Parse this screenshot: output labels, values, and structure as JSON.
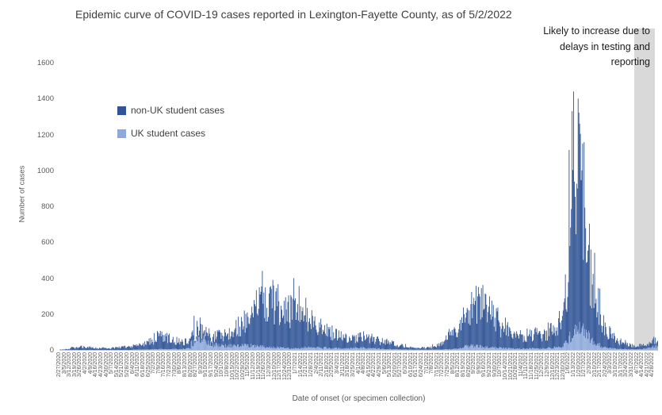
{
  "title": "Epidemic curve of COVID-19 cases reported in Lexington-Fayette County, as of 5/2/2022",
  "annotation": {
    "lines": [
      "Likely to increase due to",
      "delays in testing and",
      "reporting"
    ]
  },
  "legend": [
    {
      "label": "non-UK student cases",
      "color": "#305496"
    },
    {
      "label": "UK student cases",
      "color": "#8EA9DB"
    }
  ],
  "y_axis": {
    "title": "Number of cases",
    "ticks": [
      0,
      200,
      400,
      600,
      800,
      1000,
      1200,
      1400,
      1600
    ],
    "max": 1600
  },
  "x_axis": {
    "title": "Date of onset (or specimen collection)"
  },
  "highlight_band": {
    "color": "#D9D9D9"
  },
  "colors": {
    "axis_line": "#C9C9C9",
    "tick_text": "#595959"
  },
  "chart_data": {
    "type": "bar",
    "stacked": true,
    "title": "Epidemic curve of COVID-19 cases reported in Lexington-Fayette County, as of 5/2/2022",
    "xlabel": "Date of onset (or specimen collection)",
    "ylabel": "Number of cases",
    "ylim": [
      0,
      1600
    ],
    "x_start": "2/27/2020",
    "x_end": "5/2/2022",
    "series": [
      {
        "name": "non-UK student cases"
      },
      {
        "name": "UK student cases"
      }
    ],
    "week_labels": [
      "2/27/2020",
      "3/5/2020",
      "3/12/2020",
      "3/19/2020",
      "3/26/2020",
      "4/2/2020",
      "4/9/2020",
      "4/16/2020",
      "4/23/2020",
      "4/30/2020",
      "5/7/2020",
      "5/14/2020",
      "5/21/2020",
      "5/28/2020",
      "6/4/2020",
      "6/11/2020",
      "6/18/2020",
      "6/25/2020",
      "7/2/2020",
      "7/9/2020",
      "7/16/2020",
      "7/23/2020",
      "7/30/2020",
      "8/6/2020",
      "8/13/2020",
      "8/20/2020",
      "8/27/2020",
      "9/3/2020",
      "9/10/2020",
      "9/17/2020",
      "9/24/2020",
      "10/1/2020",
      "10/8/2020",
      "10/15/2020",
      "10/22/2020",
      "10/29/2020",
      "11/5/2020",
      "11/12/2020",
      "11/19/2020",
      "11/26/2020",
      "12/3/2020",
      "12/10/2020",
      "12/17/2020",
      "12/24/2020",
      "12/31/2020",
      "1/7/2021",
      "1/14/2021",
      "1/21/2021",
      "1/28/2021",
      "2/4/2021",
      "2/11/2021",
      "2/18/2021",
      "2/25/2021",
      "3/4/2021",
      "3/11/2021",
      "3/18/2021",
      "3/25/2021",
      "4/1/2021",
      "4/8/2021",
      "4/15/2021",
      "4/22/2021",
      "4/29/2021",
      "5/6/2021",
      "5/13/2021",
      "5/20/2021",
      "5/27/2021",
      "6/3/2021",
      "6/10/2021",
      "6/17/2021",
      "6/24/2021",
      "7/1/2021",
      "7/8/2021",
      "7/15/2021",
      "7/22/2021",
      "7/29/2021",
      "8/5/2021",
      "8/12/2021",
      "8/19/2021",
      "8/26/2021",
      "9/2/2021",
      "9/9/2021",
      "9/16/2021",
      "9/23/2021",
      "9/30/2021",
      "10/7/2021",
      "10/14/2021",
      "10/21/2021",
      "10/28/2021",
      "11/4/2021",
      "11/11/2021",
      "11/18/2021",
      "11/25/2021",
      "12/2/2021",
      "12/9/2021",
      "12/16/2021",
      "12/23/2021",
      "12/30/2021",
      "1/6/2022",
      "1/13/2022",
      "1/20/2022",
      "1/27/2022",
      "2/3/2022",
      "2/10/2022",
      "2/17/2022",
      "2/24/2022",
      "3/3/2022",
      "3/10/2022",
      "3/17/2022",
      "3/24/2022",
      "3/31/2022",
      "4/7/2022",
      "4/14/2022",
      "4/21/2022",
      "4/28/2022"
    ],
    "weekly_total": [
      2,
      5,
      12,
      15,
      18,
      15,
      12,
      10,
      12,
      10,
      12,
      15,
      18,
      20,
      25,
      30,
      40,
      50,
      70,
      80,
      70,
      60,
      55,
      50,
      55,
      90,
      140,
      120,
      90,
      80,
      85,
      95,
      110,
      130,
      150,
      170,
      200,
      240,
      280,
      250,
      280,
      270,
      250,
      220,
      240,
      260,
      220,
      190,
      170,
      150,
      120,
      100,
      90,
      80,
      70,
      65,
      70,
      75,
      70,
      65,
      55,
      50,
      45,
      40,
      30,
      25,
      18,
      12,
      10,
      12,
      15,
      25,
      40,
      60,
      90,
      130,
      170,
      210,
      250,
      280,
      260,
      230,
      200,
      170,
      140,
      120,
      100,
      90,
      80,
      85,
      90,
      80,
      100,
      110,
      120,
      160,
      350,
      800,
      1050,
      950,
      700,
      400,
      250,
      150,
      100,
      70,
      50,
      40,
      30,
      25,
      25,
      30,
      45,
      60
    ],
    "weekly_uk": [
      0,
      0,
      0,
      0,
      0,
      0,
      0,
      0,
      0,
      0,
      0,
      0,
      0,
      0,
      2,
      2,
      3,
      3,
      4,
      5,
      5,
      5,
      5,
      6,
      10,
      40,
      70,
      60,
      40,
      30,
      25,
      25,
      25,
      25,
      25,
      25,
      25,
      25,
      20,
      15,
      15,
      15,
      12,
      10,
      10,
      12,
      15,
      15,
      15,
      15,
      12,
      10,
      10,
      10,
      10,
      10,
      12,
      12,
      10,
      10,
      8,
      6,
      5,
      4,
      3,
      2,
      2,
      1,
      1,
      1,
      1,
      2,
      2,
      3,
      4,
      6,
      10,
      20,
      25,
      25,
      20,
      18,
      15,
      12,
      10,
      10,
      8,
      8,
      8,
      8,
      10,
      8,
      10,
      12,
      15,
      20,
      40,
      80,
      110,
      120,
      90,
      50,
      30,
      20,
      12,
      8,
      6,
      5,
      4,
      4,
      5,
      8,
      15,
      20
    ],
    "spikes": {
      "130": 105,
      "179": 190,
      "270": 440,
      "284": 390,
      "312": 400,
      "558": 350,
      "683": 1330,
      "685": 1440,
      "691": 1400
    }
  }
}
